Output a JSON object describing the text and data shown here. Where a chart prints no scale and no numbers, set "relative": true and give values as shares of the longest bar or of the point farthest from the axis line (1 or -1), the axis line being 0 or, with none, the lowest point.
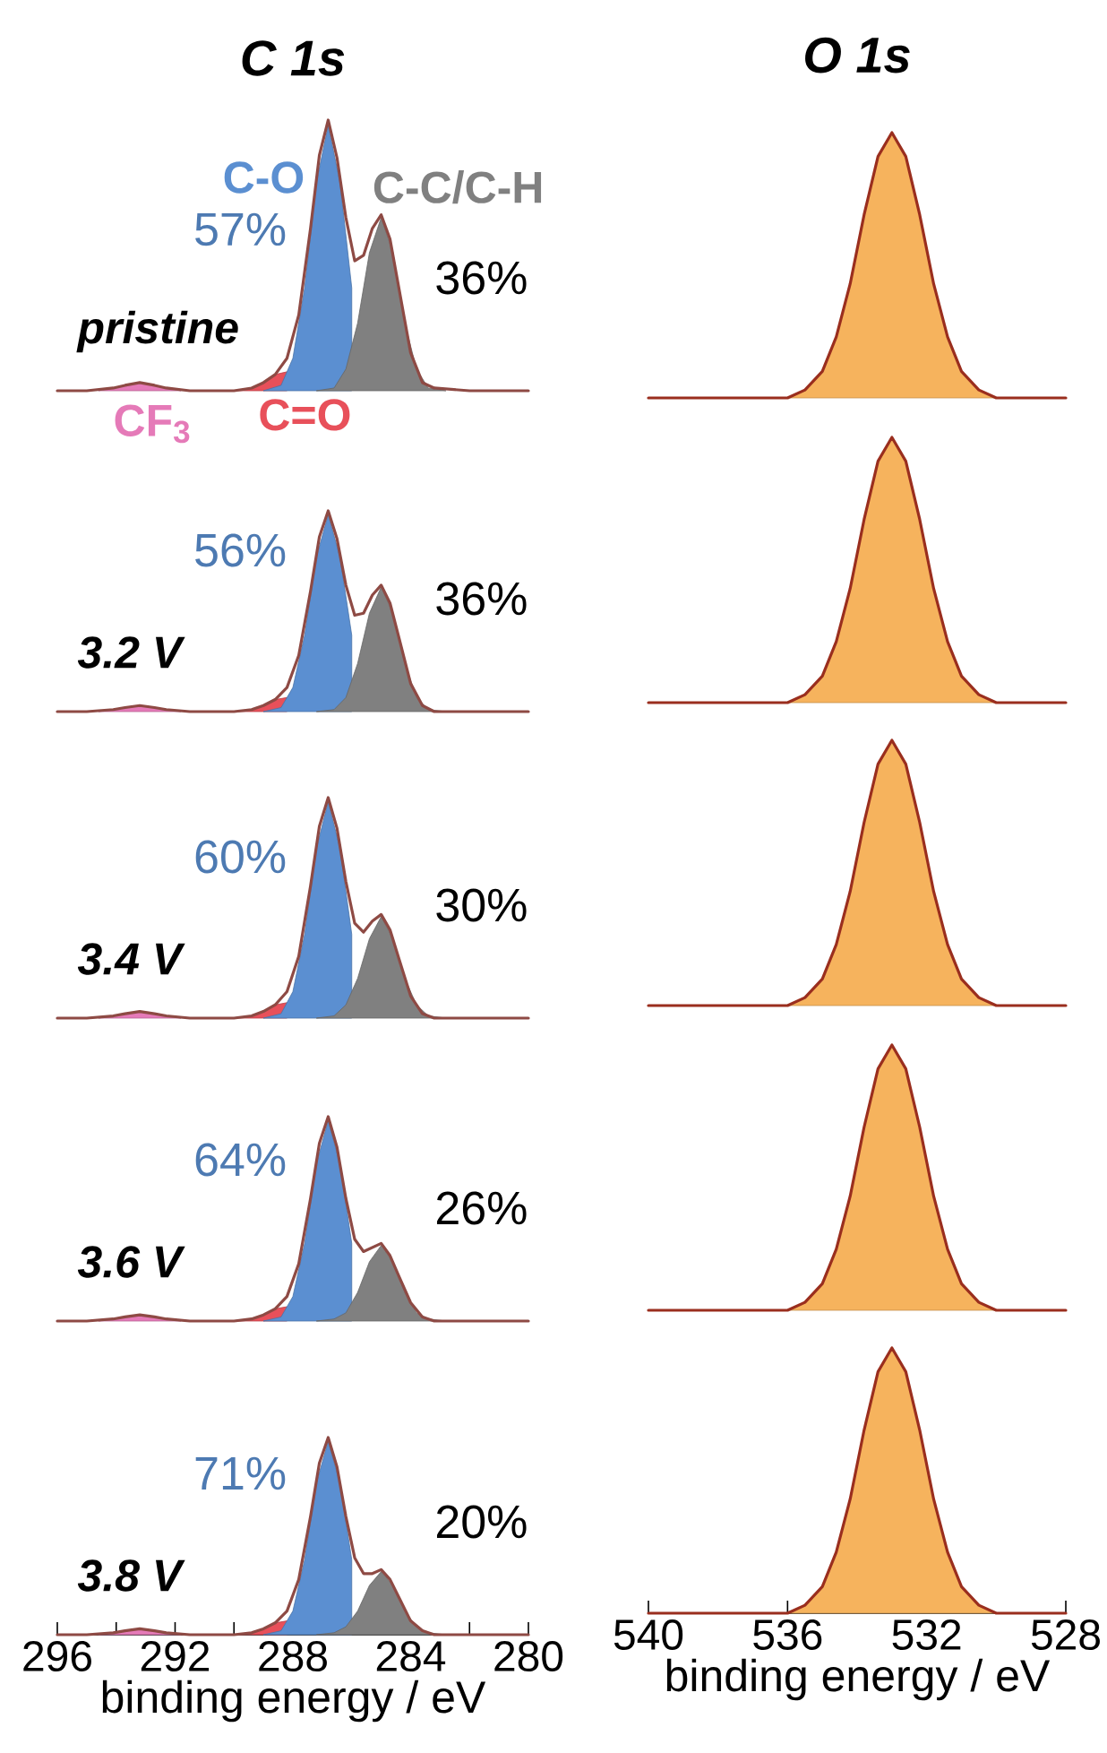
{
  "chart_data": [
    {
      "type": "area",
      "title": "C 1s",
      "xlim": [
        296,
        280
      ],
      "tick_labels": false,
      "relative": true,
      "series": [
        {
          "name": "CF$_{3}$",
          "color": "#e57ab8",
          "x": [
            294.6,
            294.1,
            293.7,
            293.2,
            292.7,
            292.3,
            291.8
          ],
          "values": [
            0,
            0.01,
            0.02,
            0.03,
            0.02,
            0.01,
            0
          ]
        },
        {
          "name": "C=O",
          "color": "#e8505a",
          "x": [
            290,
            289.4,
            289,
            288.6,
            288.2
          ],
          "values": [
            0,
            0.01,
            0.03,
            0.06,
            0.07
          ]
        },
        {
          "name": "C-O",
          "color": "#5b8fd1",
          "x": [
            289,
            288.4,
            288,
            287.6,
            287.2,
            286.8,
            286.4,
            286
          ],
          "values": [
            0,
            0.02,
            0.12,
            0.38,
            0.77,
            0.98,
            0.77,
            0.38
          ]
        },
        {
          "name": "C-C/C-H",
          "color": "#808080",
          "x": [
            287.2,
            286.6,
            286.2,
            285.8,
            285.4,
            285,
            284.6,
            284.2,
            283.8,
            283.4,
            282.8
          ],
          "values": [
            0,
            0.01,
            0.08,
            0.25,
            0.51,
            0.64,
            0.51,
            0.25,
            0.08,
            0.01,
            0
          ]
        },
        {
          "type": "line",
          "color": "#8e4a44",
          "x": [
            296,
            295,
            294.1,
            293.7,
            293.2,
            292.7,
            292.3,
            291.5,
            290.5,
            290,
            289.4,
            289,
            288.6,
            288.2,
            287.8,
            287.4,
            287.1,
            286.8,
            286.5,
            286.2,
            285.9,
            285.6,
            285.3,
            285,
            284.7,
            284.4,
            284,
            283.6,
            283.2,
            282,
            281,
            280
          ],
          "values": [
            0,
            0,
            0.01,
            0.02,
            0.03,
            0.02,
            0.01,
            0,
            0,
            0,
            0.01,
            0.03,
            0.06,
            0.12,
            0.28,
            0.6,
            0.87,
            1,
            0.86,
            0.64,
            0.48,
            0.5,
            0.6,
            0.65,
            0.56,
            0.38,
            0.14,
            0.03,
            0.01,
            0,
            0,
            0
          ]
        }
      ],
      "annotations": [
        "pristine",
        "57%",
        "36%"
      ]
    },
    {
      "type": "area",
      "title": "O 1s",
      "xlim": [
        540,
        528
      ],
      "tick_labels": false,
      "relative": true,
      "series": [
        {
          "color": "#f6b35d",
          "x": [
            536,
            535.5,
            535,
            534.6,
            534.2,
            533.8,
            533.4,
            533,
            532.6,
            532.2,
            531.8,
            531.4,
            531,
            530.5,
            530
          ],
          "values": [
            0,
            0.03,
            0.1,
            0.23,
            0.43,
            0.69,
            0.91,
            1,
            0.91,
            0.69,
            0.43,
            0.23,
            0.1,
            0.03,
            0
          ]
        },
        {
          "type": "line",
          "color": "#9a2e1e",
          "x": [
            540,
            538,
            536,
            535.5,
            535,
            534.6,
            534.2,
            533.8,
            533.4,
            533,
            532.6,
            532.2,
            531.8,
            531.4,
            531,
            530.5,
            530,
            529,
            528
          ],
          "values": [
            0,
            0,
            0,
            0.03,
            0.1,
            0.23,
            0.43,
            0.69,
            0.91,
            1,
            0.91,
            0.69,
            0.43,
            0.23,
            0.1,
            0.03,
            0,
            0,
            0
          ]
        }
      ]
    },
    {
      "type": "area",
      "xlim": [
        296,
        280
      ],
      "tick_labels": false,
      "relative": true,
      "series": [
        {
          "color": "#e57ab8",
          "x": [
            294.6,
            294.1,
            293.7,
            293.2,
            292.7,
            292.3,
            291.8
          ],
          "values": [
            0,
            0.01,
            0.02,
            0.03,
            0.02,
            0.01,
            0
          ]
        },
        {
          "color": "#e8505a",
          "x": [
            290,
            289.4,
            289,
            288.6,
            288.2
          ],
          "values": [
            0,
            0.01,
            0.03,
            0.06,
            0.07
          ]
        },
        {
          "color": "#5b8fd1",
          "x": [
            289,
            288.4,
            288,
            287.6,
            287.2,
            286.8,
            286.4,
            286
          ],
          "values": [
            0,
            0.02,
            0.12,
            0.38,
            0.77,
            0.98,
            0.77,
            0.38
          ]
        },
        {
          "color": "#808080",
          "x": [
            287.2,
            286.6,
            286.2,
            285.8,
            285.4,
            285,
            284.6,
            284.2,
            283.8,
            283.4,
            282.8
          ],
          "values": [
            0,
            0.01,
            0.07,
            0.24,
            0.49,
            0.62,
            0.49,
            0.24,
            0.07,
            0.01,
            0
          ]
        },
        {
          "type": "line",
          "color": "#8e4a44",
          "x": [
            296,
            295,
            294.1,
            293.7,
            293.2,
            292.7,
            292.3,
            291.5,
            290.5,
            290,
            289.4,
            289,
            288.6,
            288.2,
            287.8,
            287.4,
            287.1,
            286.8,
            286.5,
            286.2,
            285.9,
            285.6,
            285.3,
            285,
            284.7,
            284.4,
            284,
            283.6,
            283.2,
            282,
            281,
            280
          ],
          "values": [
            0,
            0,
            0.01,
            0.02,
            0.03,
            0.02,
            0.01,
            0,
            0,
            0,
            0.01,
            0.03,
            0.06,
            0.12,
            0.28,
            0.6,
            0.87,
            1,
            0.86,
            0.63,
            0.48,
            0.49,
            0.58,
            0.63,
            0.54,
            0.37,
            0.14,
            0.03,
            0,
            0,
            0,
            0
          ]
        }
      ],
      "annotations": [
        "3.2 V",
        "56%",
        "36%"
      ]
    },
    {
      "type": "area",
      "xlim": [
        540,
        528
      ],
      "tick_labels": false,
      "relative": true,
      "series": [
        {
          "color": "#f6b35d",
          "x": [
            536,
            535.5,
            535,
            534.6,
            534.2,
            533.8,
            533.4,
            533,
            532.6,
            532.2,
            531.8,
            531.4,
            531,
            530.5,
            530
          ],
          "values": [
            0,
            0.03,
            0.1,
            0.23,
            0.43,
            0.69,
            0.91,
            1,
            0.91,
            0.69,
            0.43,
            0.23,
            0.1,
            0.03,
            0
          ]
        },
        {
          "type": "line",
          "color": "#9a2e1e",
          "x": [
            540,
            538,
            536,
            535.5,
            535,
            534.6,
            534.2,
            533.8,
            533.4,
            533,
            532.6,
            532.2,
            531.8,
            531.4,
            531,
            530.5,
            530,
            529,
            528
          ],
          "values": [
            0,
            0,
            0,
            0.03,
            0.1,
            0.23,
            0.43,
            0.69,
            0.91,
            1,
            0.91,
            0.69,
            0.43,
            0.23,
            0.1,
            0.03,
            0,
            0,
            0
          ]
        }
      ]
    },
    {
      "type": "area",
      "xlim": [
        296,
        280
      ],
      "tick_labels": false,
      "relative": true,
      "series": [
        {
          "color": "#e57ab8",
          "x": [
            294.6,
            294.1,
            293.7,
            293.2,
            292.7,
            292.3,
            291.8
          ],
          "values": [
            0,
            0.01,
            0.02,
            0.03,
            0.02,
            0.01,
            0
          ]
        },
        {
          "color": "#e8505a",
          "x": [
            290,
            289.4,
            289,
            288.6,
            288.2
          ],
          "values": [
            0,
            0.01,
            0.03,
            0.06,
            0.07
          ]
        },
        {
          "color": "#5b8fd1",
          "x": [
            289,
            288.4,
            288,
            287.6,
            287.2,
            286.8,
            286.4,
            286
          ],
          "values": [
            0,
            0.02,
            0.12,
            0.38,
            0.77,
            0.98,
            0.77,
            0.38
          ]
        },
        {
          "color": "#808080",
          "x": [
            287.2,
            286.6,
            286.2,
            285.8,
            285.4,
            285,
            284.6,
            284.2,
            283.8,
            283.4,
            282.8
          ],
          "values": [
            0,
            0.01,
            0.06,
            0.18,
            0.36,
            0.46,
            0.36,
            0.18,
            0.06,
            0.01,
            0
          ]
        },
        {
          "type": "line",
          "color": "#8e4a44",
          "x": [
            296,
            295,
            294.1,
            293.7,
            293.2,
            292.7,
            292.3,
            291.5,
            290.5,
            290,
            289.4,
            289,
            288.6,
            288.2,
            287.8,
            287.4,
            287.1,
            286.8,
            286.5,
            286.2,
            285.9,
            285.6,
            285.3,
            285,
            284.7,
            284.4,
            284,
            283.6,
            283.2,
            282,
            281,
            280
          ],
          "values": [
            0,
            0,
            0.01,
            0.02,
            0.03,
            0.02,
            0.01,
            0,
            0,
            0,
            0.01,
            0.03,
            0.06,
            0.12,
            0.28,
            0.6,
            0.87,
            1,
            0.86,
            0.62,
            0.43,
            0.39,
            0.44,
            0.47,
            0.4,
            0.27,
            0.1,
            0.02,
            0,
            0,
            0,
            0
          ]
        }
      ],
      "annotations": [
        "3.4 V",
        "60%",
        "30%"
      ]
    },
    {
      "type": "area",
      "xlim": [
        540,
        528
      ],
      "tick_labels": false,
      "relative": true,
      "series": [
        {
          "color": "#f6b35d",
          "x": [
            536,
            535.5,
            535,
            534.6,
            534.2,
            533.8,
            533.4,
            533,
            532.6,
            532.2,
            531.8,
            531.4,
            531,
            530.5,
            530
          ],
          "values": [
            0,
            0.03,
            0.1,
            0.23,
            0.43,
            0.69,
            0.91,
            1,
            0.91,
            0.69,
            0.43,
            0.23,
            0.1,
            0.03,
            0
          ]
        },
        {
          "type": "line",
          "color": "#9a2e1e",
          "x": [
            540,
            538,
            536,
            535.5,
            535,
            534.6,
            534.2,
            533.8,
            533.4,
            533,
            532.6,
            532.2,
            531.8,
            531.4,
            531,
            530.5,
            530,
            529,
            528
          ],
          "values": [
            0,
            0,
            0,
            0.03,
            0.1,
            0.23,
            0.43,
            0.69,
            0.91,
            1,
            0.91,
            0.69,
            0.43,
            0.23,
            0.1,
            0.03,
            0,
            0,
            0
          ]
        }
      ]
    },
    {
      "type": "area",
      "xlim": [
        296,
        280
      ],
      "tick_labels": false,
      "relative": true,
      "series": [
        {
          "color": "#e57ab8",
          "x": [
            294.6,
            294.1,
            293.7,
            293.2,
            292.7,
            292.3,
            291.8
          ],
          "values": [
            0,
            0.01,
            0.02,
            0.03,
            0.02,
            0.01,
            0
          ]
        },
        {
          "color": "#e8505a",
          "x": [
            290,
            289.4,
            289,
            288.6,
            288.2
          ],
          "values": [
            0,
            0.01,
            0.03,
            0.06,
            0.07
          ]
        },
        {
          "color": "#5b8fd1",
          "x": [
            289,
            288.4,
            288,
            287.6,
            287.2,
            286.8,
            286.4,
            286
          ],
          "values": [
            0,
            0.02,
            0.12,
            0.38,
            0.77,
            0.98,
            0.77,
            0.38
          ]
        },
        {
          "color": "#808080",
          "x": [
            287.2,
            286.6,
            286.2,
            285.8,
            285.4,
            285,
            284.6,
            284.2,
            283.8,
            283.4,
            282.8
          ],
          "values": [
            0,
            0.01,
            0.04,
            0.14,
            0.29,
            0.37,
            0.29,
            0.14,
            0.04,
            0.01,
            0
          ]
        },
        {
          "type": "line",
          "color": "#8e4a44",
          "x": [
            296,
            295,
            294.1,
            293.7,
            293.2,
            292.7,
            292.3,
            291.5,
            290.5,
            290,
            289.4,
            289,
            288.6,
            288.2,
            287.8,
            287.4,
            287.1,
            286.8,
            286.5,
            286.2,
            285.9,
            285.6,
            285.3,
            285,
            284.7,
            284.4,
            284,
            283.6,
            283.2,
            282,
            281,
            280
          ],
          "values": [
            0,
            0,
            0.01,
            0.02,
            0.03,
            0.02,
            0.01,
            0,
            0,
            0,
            0.01,
            0.03,
            0.06,
            0.12,
            0.28,
            0.6,
            0.87,
            1,
            0.85,
            0.6,
            0.4,
            0.34,
            0.36,
            0.38,
            0.32,
            0.22,
            0.09,
            0.02,
            0,
            0,
            0,
            0
          ]
        }
      ],
      "annotations": [
        "3.6 V",
        "64%",
        "26%"
      ]
    },
    {
      "type": "area",
      "xlim": [
        540,
        528
      ],
      "tick_labels": false,
      "relative": true,
      "series": [
        {
          "color": "#f6b35d",
          "x": [
            536,
            535.5,
            535,
            534.6,
            534.2,
            533.8,
            533.4,
            533,
            532.6,
            532.2,
            531.8,
            531.4,
            531,
            530.5,
            530
          ],
          "values": [
            0,
            0.03,
            0.1,
            0.23,
            0.43,
            0.69,
            0.91,
            1,
            0.91,
            0.69,
            0.43,
            0.23,
            0.1,
            0.03,
            0
          ]
        },
        {
          "type": "line",
          "color": "#9a2e1e",
          "x": [
            540,
            538,
            536,
            535.5,
            535,
            534.6,
            534.2,
            533.8,
            533.4,
            533,
            532.6,
            532.2,
            531.8,
            531.4,
            531,
            530.5,
            530,
            529,
            528
          ],
          "values": [
            0,
            0,
            0,
            0.03,
            0.1,
            0.23,
            0.43,
            0.69,
            0.91,
            1,
            0.91,
            0.69,
            0.43,
            0.23,
            0.1,
            0.03,
            0,
            0,
            0
          ]
        }
      ]
    },
    {
      "type": "area",
      "xlabel": "binding energy / eV",
      "xlim": [
        296,
        280
      ],
      "xticks": [
        296,
        {
          "value": 294,
          "label": null
        },
        292,
        {
          "value": 290,
          "label": null
        },
        288,
        {
          "value": 286,
          "label": null
        },
        284,
        {
          "value": 282,
          "label": null
        },
        280
      ],
      "tick_labels": "x",
      "relative": true,
      "series": [
        {
          "color": "#e57ab8",
          "x": [
            294.6,
            294.1,
            293.7,
            293.2,
            292.7,
            292.3,
            291.8
          ],
          "values": [
            0,
            0.01,
            0.02,
            0.03,
            0.02,
            0.01,
            0
          ]
        },
        {
          "color": "#e8505a",
          "x": [
            290,
            289.4,
            289,
            288.6,
            288.2
          ],
          "values": [
            0,
            0.01,
            0.03,
            0.06,
            0.07
          ]
        },
        {
          "color": "#5b8fd1",
          "x": [
            289,
            288.4,
            288,
            287.6,
            287.2,
            286.8,
            286.4,
            286
          ],
          "values": [
            0,
            0.02,
            0.12,
            0.38,
            0.77,
            0.98,
            0.77,
            0.38
          ]
        },
        {
          "color": "#808080",
          "x": [
            287.2,
            286.6,
            286.2,
            285.8,
            285.4,
            285,
            284.6,
            284.2,
            283.8,
            283.4,
            282.8
          ],
          "values": [
            0,
            0.01,
            0.04,
            0.12,
            0.25,
            0.32,
            0.25,
            0.12,
            0.04,
            0.01,
            0
          ]
        },
        {
          "type": "line",
          "color": "#8e4a44",
          "x": [
            296,
            295,
            294.1,
            293.7,
            293.2,
            292.7,
            292.3,
            291.5,
            290.5,
            290,
            289.4,
            289,
            288.6,
            288.2,
            287.8,
            287.4,
            287.1,
            286.8,
            286.5,
            286.2,
            285.9,
            285.6,
            285.3,
            285,
            284.7,
            284.4,
            284,
            283.6,
            283.2,
            282,
            281,
            280
          ],
          "values": [
            0,
            0,
            0.01,
            0.02,
            0.03,
            0.02,
            0.01,
            0,
            0,
            0,
            0.01,
            0.03,
            0.06,
            0.12,
            0.28,
            0.6,
            0.87,
            1,
            0.85,
            0.6,
            0.39,
            0.31,
            0.31,
            0.33,
            0.28,
            0.19,
            0.07,
            0.02,
            0,
            0,
            0,
            0
          ]
        }
      ],
      "annotations": [
        "3.8 V",
        "71%",
        "20%"
      ]
    },
    {
      "type": "area",
      "xlabel": "binding energy / eV",
      "xlim": [
        540,
        528
      ],
      "xticks": [
        540,
        536,
        532,
        528
      ],
      "tick_labels": "x",
      "relative": true,
      "series": [
        {
          "color": "#f6b35d",
          "x": [
            536,
            535.5,
            535,
            534.6,
            534.2,
            533.8,
            533.4,
            533,
            532.6,
            532.2,
            531.8,
            531.4,
            531,
            530.5,
            530
          ],
          "values": [
            0,
            0.03,
            0.1,
            0.23,
            0.43,
            0.69,
            0.91,
            1,
            0.91,
            0.69,
            0.43,
            0.23,
            0.1,
            0.03,
            0
          ]
        },
        {
          "type": "line",
          "color": "#9a2e1e",
          "x": [
            540,
            538,
            536,
            535.5,
            535,
            534.6,
            534.2,
            533.8,
            533.4,
            533,
            532.6,
            532.2,
            531.8,
            531.4,
            531,
            530.5,
            530,
            529,
            528
          ],
          "values": [
            0,
            0,
            0,
            0.03,
            0.1,
            0.23,
            0.43,
            0.69,
            0.91,
            1,
            0.91,
            0.69,
            0.43,
            0.23,
            0.1,
            0.03,
            0,
            0,
            0
          ]
        }
      ]
    }
  ]
}
